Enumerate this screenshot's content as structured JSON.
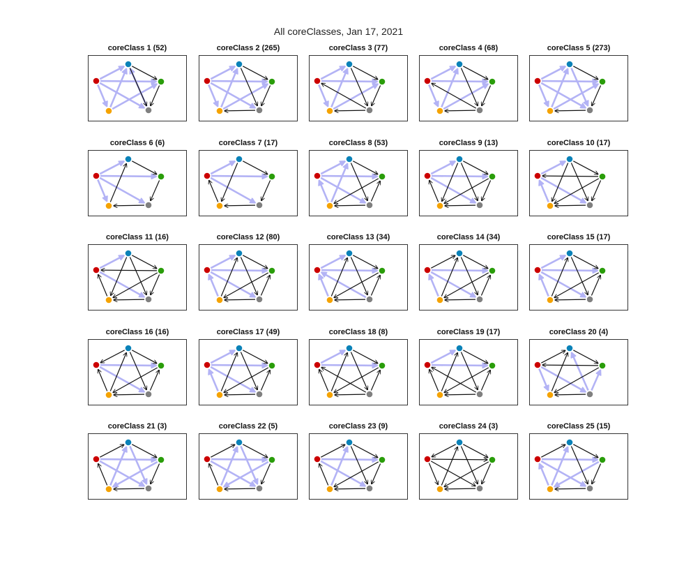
{
  "figure": {
    "title": "All coreClasses, Jan 17, 2021"
  },
  "colors": {
    "node_red": "#cc0000",
    "node_blue": "#0a82b8",
    "node_green": "#2a9d0a",
    "node_gray": "#808080",
    "node_orange": "#f5a300",
    "edge_light": "#b3b3f5",
    "edge_dark": "#111111"
  },
  "panels": [
    {
      "label": "coreClass 1 (52)",
      "edges": [
        [
          "R",
          "B",
          "L"
        ],
        [
          "R",
          "G",
          "L"
        ],
        [
          "R",
          "Y",
          "L"
        ],
        [
          "R",
          "Gy",
          "L"
        ],
        [
          "B",
          "G",
          "D"
        ],
        [
          "B",
          "Gy",
          "D"
        ],
        [
          "Y",
          "B",
          "L"
        ],
        [
          "Y",
          "G",
          "L"
        ],
        [
          "G",
          "Gy",
          "D"
        ],
        [
          "Gy",
          "B",
          "L"
        ]
      ]
    },
    {
      "label": "coreClass 2 (265)",
      "edges": [
        [
          "R",
          "B",
          "L"
        ],
        [
          "R",
          "G",
          "L"
        ],
        [
          "R",
          "Y",
          "L"
        ],
        [
          "R",
          "Gy",
          "L"
        ],
        [
          "B",
          "G",
          "D"
        ],
        [
          "B",
          "Gy",
          "D"
        ],
        [
          "Y",
          "B",
          "L"
        ],
        [
          "Y",
          "G",
          "L"
        ],
        [
          "G",
          "Gy",
          "D"
        ],
        [
          "Gy",
          "Y",
          "D"
        ]
      ]
    },
    {
      "label": "coreClass 3 (77)",
      "edges": [
        [
          "R",
          "B",
          "L"
        ],
        [
          "R",
          "G",
          "L"
        ],
        [
          "R",
          "Y",
          "L"
        ],
        [
          "B",
          "G",
          "D"
        ],
        [
          "B",
          "Gy",
          "D"
        ],
        [
          "Y",
          "B",
          "L"
        ],
        [
          "Y",
          "G",
          "L"
        ],
        [
          "G",
          "Gy",
          "D"
        ],
        [
          "Gy",
          "Y",
          "D"
        ],
        [
          "Gy",
          "R",
          "D"
        ]
      ]
    },
    {
      "label": "coreClass 4 (68)",
      "edges": [
        [
          "R",
          "B",
          "L"
        ],
        [
          "R",
          "G",
          "L"
        ],
        [
          "R",
          "Y",
          "L"
        ],
        [
          "B",
          "G",
          "D"
        ],
        [
          "B",
          "Gy",
          "D"
        ],
        [
          "Y",
          "B",
          "L"
        ],
        [
          "Y",
          "G",
          "L"
        ],
        [
          "G",
          "Gy",
          "D"
        ],
        [
          "Gy",
          "R",
          "D"
        ],
        [
          "Gy",
          "Y",
          "D"
        ]
      ]
    },
    {
      "label": "coreClass 5 (273)",
      "edges": [
        [
          "R",
          "B",
          "L"
        ],
        [
          "R",
          "G",
          "L"
        ],
        [
          "R",
          "Y",
          "L"
        ],
        [
          "R",
          "Gy",
          "L"
        ],
        [
          "B",
          "G",
          "D"
        ],
        [
          "B",
          "Gy",
          "L"
        ],
        [
          "Y",
          "B",
          "L"
        ],
        [
          "Y",
          "G",
          "L"
        ],
        [
          "G",
          "Gy",
          "D"
        ],
        [
          "Gy",
          "Y",
          "D"
        ]
      ]
    },
    {
      "label": "coreClass 6 (6)",
      "edges": [
        [
          "R",
          "B",
          "L"
        ],
        [
          "R",
          "G",
          "L"
        ],
        [
          "R",
          "Y",
          "L"
        ],
        [
          "R",
          "Gy",
          "L"
        ],
        [
          "B",
          "G",
          "D"
        ],
        [
          "Y",
          "B",
          "D"
        ],
        [
          "G",
          "Gy",
          "D"
        ],
        [
          "Gy",
          "Y",
          "D"
        ]
      ]
    },
    {
      "label": "coreClass 7 (17)",
      "edges": [
        [
          "R",
          "B",
          "L"
        ],
        [
          "R",
          "G",
          "L"
        ],
        [
          "R",
          "Gy",
          "L"
        ],
        [
          "B",
          "G",
          "D"
        ],
        [
          "B",
          "Y",
          "D"
        ],
        [
          "Y",
          "R",
          "D"
        ],
        [
          "G",
          "Gy",
          "D"
        ],
        [
          "Gy",
          "Y",
          "D"
        ]
      ]
    },
    {
      "label": "coreClass 8 (53)",
      "edges": [
        [
          "R",
          "B",
          "L"
        ],
        [
          "R",
          "G",
          "L"
        ],
        [
          "R",
          "Gy",
          "L"
        ],
        [
          "B",
          "G",
          "D"
        ],
        [
          "B",
          "Gy",
          "D"
        ],
        [
          "Y",
          "B",
          "L"
        ],
        [
          "G",
          "Y",
          "D"
        ],
        [
          "Gy",
          "G",
          "D"
        ],
        [
          "Gy",
          "Y",
          "D"
        ],
        [
          "Y",
          "R",
          "L"
        ]
      ]
    },
    {
      "label": "coreClass 9 (13)",
      "edges": [
        [
          "R",
          "B",
          "L"
        ],
        [
          "R",
          "G",
          "L"
        ],
        [
          "B",
          "G",
          "D"
        ],
        [
          "B",
          "Gy",
          "D"
        ],
        [
          "B",
          "Y",
          "D"
        ],
        [
          "G",
          "Y",
          "D"
        ],
        [
          "G",
          "Gy",
          "D"
        ],
        [
          "Y",
          "R",
          "D"
        ],
        [
          "Gy",
          "Y",
          "D"
        ],
        [
          "R",
          "Gy",
          "L"
        ]
      ]
    },
    {
      "label": "coreClass 10 (17)",
      "edges": [
        [
          "R",
          "B",
          "L"
        ],
        [
          "B",
          "G",
          "D"
        ],
        [
          "B",
          "Gy",
          "D"
        ],
        [
          "B",
          "Y",
          "D"
        ],
        [
          "G",
          "R",
          "D"
        ],
        [
          "G",
          "Y",
          "D"
        ],
        [
          "G",
          "Gy",
          "D"
        ],
        [
          "Y",
          "R",
          "L"
        ],
        [
          "Gy",
          "Y",
          "D"
        ],
        [
          "R",
          "Gy",
          "L"
        ]
      ]
    },
    {
      "label": "coreClass 11 (16)",
      "edges": [
        [
          "R",
          "B",
          "L"
        ],
        [
          "B",
          "G",
          "D"
        ],
        [
          "B",
          "Gy",
          "D"
        ],
        [
          "B",
          "Y",
          "D"
        ],
        [
          "G",
          "R",
          "D"
        ],
        [
          "G",
          "Y",
          "D"
        ],
        [
          "G",
          "Gy",
          "D"
        ],
        [
          "Y",
          "R",
          "D"
        ],
        [
          "Gy",
          "Y",
          "D"
        ],
        [
          "R",
          "Gy",
          "L"
        ]
      ]
    },
    {
      "label": "coreClass 12 (80)",
      "edges": [
        [
          "R",
          "B",
          "L"
        ],
        [
          "R",
          "G",
          "L"
        ],
        [
          "B",
          "G",
          "D"
        ],
        [
          "B",
          "Gy",
          "D"
        ],
        [
          "Y",
          "B",
          "D"
        ],
        [
          "G",
          "Y",
          "D"
        ],
        [
          "Gy",
          "G",
          "D"
        ],
        [
          "Y",
          "R",
          "L"
        ],
        [
          "Gy",
          "Y",
          "D"
        ],
        [
          "R",
          "Gy",
          "L"
        ]
      ]
    },
    {
      "label": "coreClass 13 (34)",
      "edges": [
        [
          "R",
          "B",
          "L"
        ],
        [
          "R",
          "G",
          "L"
        ],
        [
          "B",
          "G",
          "D"
        ],
        [
          "B",
          "Gy",
          "D"
        ],
        [
          "Y",
          "B",
          "D"
        ],
        [
          "G",
          "Y",
          "D"
        ],
        [
          "Gy",
          "G",
          "D"
        ],
        [
          "Y",
          "R",
          "L"
        ],
        [
          "Gy",
          "Y",
          "D"
        ],
        [
          "Gy",
          "R",
          "L"
        ]
      ]
    },
    {
      "label": "coreClass 14 (34)",
      "edges": [
        [
          "R",
          "B",
          "D"
        ],
        [
          "R",
          "G",
          "L"
        ],
        [
          "B",
          "G",
          "D"
        ],
        [
          "B",
          "Gy",
          "D"
        ],
        [
          "Y",
          "B",
          "D"
        ],
        [
          "G",
          "Y",
          "D"
        ],
        [
          "Gy",
          "G",
          "D"
        ],
        [
          "Y",
          "R",
          "L"
        ],
        [
          "Gy",
          "Y",
          "D"
        ],
        [
          "R",
          "Gy",
          "L"
        ]
      ]
    },
    {
      "label": "coreClass 15 (17)",
      "edges": [
        [
          "R",
          "B",
          "L"
        ],
        [
          "R",
          "G",
          "L"
        ],
        [
          "B",
          "G",
          "D"
        ],
        [
          "B",
          "Gy",
          "D"
        ],
        [
          "Y",
          "B",
          "D"
        ],
        [
          "G",
          "Y",
          "D"
        ],
        [
          "Gy",
          "G",
          "D"
        ],
        [
          "Y",
          "R",
          "L"
        ],
        [
          "Gy",
          "Y",
          "D"
        ],
        [
          "R",
          "Gy",
          "L"
        ]
      ]
    },
    {
      "label": "coreClass 16 (16)",
      "edges": [
        [
          "B",
          "R",
          "D"
        ],
        [
          "B",
          "G",
          "D"
        ],
        [
          "B",
          "Gy",
          "D"
        ],
        [
          "Y",
          "B",
          "D"
        ],
        [
          "G",
          "Y",
          "D"
        ],
        [
          "Gy",
          "G",
          "D"
        ],
        [
          "Y",
          "R",
          "D"
        ],
        [
          "Gy",
          "Y",
          "D"
        ],
        [
          "R",
          "Gy",
          "L"
        ],
        [
          "R",
          "G",
          "L"
        ]
      ]
    },
    {
      "label": "coreClass 17 (49)",
      "edges": [
        [
          "R",
          "B",
          "L"
        ],
        [
          "R",
          "G",
          "L"
        ],
        [
          "B",
          "G",
          "D"
        ],
        [
          "B",
          "Gy",
          "D"
        ],
        [
          "Y",
          "B",
          "D"
        ],
        [
          "G",
          "Y",
          "D"
        ],
        [
          "Gy",
          "G",
          "D"
        ],
        [
          "Y",
          "R",
          "L"
        ],
        [
          "Gy",
          "Y",
          "D"
        ],
        [
          "R",
          "Gy",
          "L"
        ]
      ]
    },
    {
      "label": "coreClass 18 (8)",
      "edges": [
        [
          "R",
          "B",
          "L"
        ],
        [
          "R",
          "G",
          "L"
        ],
        [
          "B",
          "G",
          "D"
        ],
        [
          "B",
          "Gy",
          "D"
        ],
        [
          "Y",
          "B",
          "D"
        ],
        [
          "G",
          "Y",
          "D"
        ],
        [
          "Gy",
          "G",
          "D"
        ],
        [
          "Y",
          "R",
          "D"
        ],
        [
          "Gy",
          "Y",
          "D"
        ],
        [
          "Gy",
          "R",
          "D"
        ]
      ]
    },
    {
      "label": "coreClass 19 (17)",
      "edges": [
        [
          "R",
          "B",
          "L"
        ],
        [
          "R",
          "G",
          "L"
        ],
        [
          "B",
          "G",
          "D"
        ],
        [
          "B",
          "Gy",
          "D"
        ],
        [
          "Y",
          "B",
          "D"
        ],
        [
          "G",
          "Y",
          "D"
        ],
        [
          "Gy",
          "G",
          "D"
        ],
        [
          "Y",
          "R",
          "D"
        ],
        [
          "Gy",
          "Y",
          "D"
        ],
        [
          "Gy",
          "R",
          "D"
        ]
      ]
    },
    {
      "label": "coreClass 20 (4)",
      "edges": [
        [
          "R",
          "B",
          "D"
        ],
        [
          "G",
          "R",
          "D"
        ],
        [
          "B",
          "G",
          "D"
        ],
        [
          "Gy",
          "B",
          "L"
        ],
        [
          "Y",
          "B",
          "D"
        ],
        [
          "G",
          "Y",
          "D"
        ],
        [
          "Gy",
          "G",
          "L"
        ],
        [
          "R",
          "Y",
          "L"
        ],
        [
          "Gy",
          "Y",
          "D"
        ],
        [
          "R",
          "Gy",
          "L"
        ]
      ]
    },
    {
      "label": "coreClass 21 (3)",
      "edges": [
        [
          "R",
          "B",
          "D"
        ],
        [
          "R",
          "G",
          "L"
        ],
        [
          "B",
          "G",
          "D"
        ],
        [
          "B",
          "Gy",
          "L"
        ],
        [
          "Y",
          "B",
          "L"
        ],
        [
          "G",
          "Y",
          "L"
        ],
        [
          "G",
          "Gy",
          "D"
        ],
        [
          "Y",
          "R",
          "D"
        ],
        [
          "Gy",
          "Y",
          "D"
        ],
        [
          "R",
          "Gy",
          "L"
        ]
      ]
    },
    {
      "label": "coreClass 22 (5)",
      "edges": [
        [
          "R",
          "B",
          "D"
        ],
        [
          "R",
          "G",
          "L"
        ],
        [
          "B",
          "G",
          "D"
        ],
        [
          "B",
          "Gy",
          "L"
        ],
        [
          "Y",
          "B",
          "L"
        ],
        [
          "G",
          "Y",
          "L"
        ],
        [
          "G",
          "Gy",
          "D"
        ],
        [
          "Y",
          "R",
          "D"
        ],
        [
          "Gy",
          "Y",
          "D"
        ],
        [
          "R",
          "Gy",
          "L"
        ]
      ]
    },
    {
      "label": "coreClass 23 (9)",
      "edges": [
        [
          "R",
          "B",
          "D"
        ],
        [
          "R",
          "G",
          "L"
        ],
        [
          "B",
          "G",
          "D"
        ],
        [
          "B",
          "Gy",
          "D"
        ],
        [
          "Y",
          "B",
          "L"
        ],
        [
          "G",
          "Y",
          "D"
        ],
        [
          "G",
          "Gy",
          "D"
        ],
        [
          "Y",
          "R",
          "D"
        ],
        [
          "Gy",
          "Y",
          "D"
        ],
        [
          "R",
          "Gy",
          "L"
        ]
      ]
    },
    {
      "label": "coreClass 24 (3)",
      "edges": [
        [
          "B",
          "R",
          "D"
        ],
        [
          "R",
          "G",
          "D"
        ],
        [
          "B",
          "G",
          "D"
        ],
        [
          "B",
          "Gy",
          "D"
        ],
        [
          "Y",
          "B",
          "D"
        ],
        [
          "G",
          "Y",
          "D"
        ],
        [
          "G",
          "Gy",
          "D"
        ],
        [
          "R",
          "Y",
          "D"
        ],
        [
          "Gy",
          "Y",
          "D"
        ],
        [
          "R",
          "Gy",
          "D"
        ]
      ]
    },
    {
      "label": "coreClass 25 (15)",
      "edges": [
        [
          "R",
          "B",
          "D"
        ],
        [
          "R",
          "G",
          "L"
        ],
        [
          "B",
          "G",
          "D"
        ],
        [
          "B",
          "Gy",
          "D"
        ],
        [
          "Y",
          "B",
          "L"
        ],
        [
          "G",
          "Y",
          "L"
        ],
        [
          "G",
          "Gy",
          "D"
        ],
        [
          "Y",
          "R",
          "L"
        ],
        [
          "Gy",
          "Y",
          "D"
        ],
        [
          "R",
          "Gy",
          "L"
        ]
      ]
    }
  ]
}
